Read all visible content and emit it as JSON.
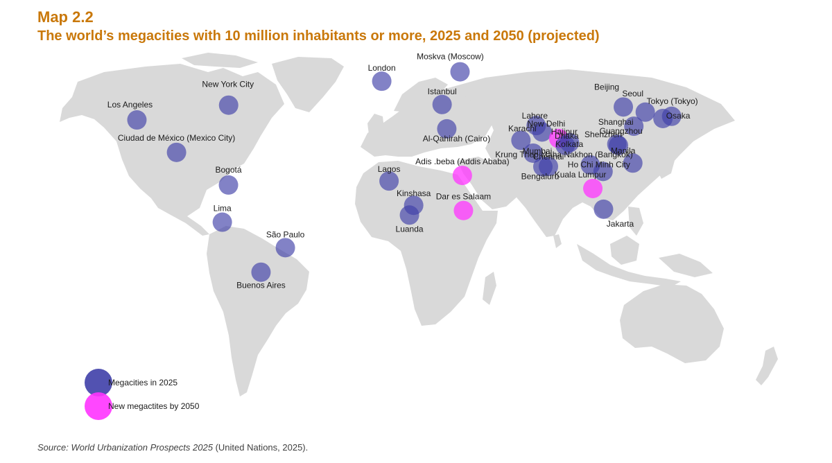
{
  "header": {
    "map_label": "Map 2.2",
    "title": "The world’s megacities with 10 million inhabitants or more, 2025 and 2050 (projected)"
  },
  "colors": {
    "accent": "#c9780a",
    "land": "#d9d9d9",
    "ocean": "#ffffff",
    "megacity_2025": "#3f3fa8",
    "new_megacity_2050": "#ff33ff"
  },
  "legend": {
    "megacities_2025": "Megacities in 2025",
    "new_megacities_2050": "New megactites by 2050"
  },
  "cities": [
    {
      "name": "Los Angeles",
      "lon": -118.24,
      "lat": 34.05,
      "group": "2025"
    },
    {
      "name": "New York City",
      "lon": -74.0,
      "lat": 40.71,
      "group": "2025"
    },
    {
      "name": "Ciudad de México (Mexico City)",
      "lon": -99.13,
      "lat": 19.43,
      "group": "2025"
    },
    {
      "name": "Bogotá",
      "lon": -74.07,
      "lat": 4.71,
      "group": "2025"
    },
    {
      "name": "Lima",
      "lon": -77.04,
      "lat": -12.05,
      "group": "2025"
    },
    {
      "name": "São Paulo",
      "lon": -46.63,
      "lat": -23.55,
      "group": "2025"
    },
    {
      "name": "Buenos Aires",
      "lon": -58.38,
      "lat": -34.6,
      "group": "2025"
    },
    {
      "name": "London",
      "lon": -0.13,
      "lat": 51.51,
      "group": "2025"
    },
    {
      "name": "Moskva (Moscow)",
      "lon": 37.62,
      "lat": 55.76,
      "group": "2025"
    },
    {
      "name": "Istanbul",
      "lon": 28.98,
      "lat": 41.01,
      "group": "2025"
    },
    {
      "name": "Al-Qahirah (Cairo)",
      "lon": 31.24,
      "lat": 30.04,
      "group": "2025"
    },
    {
      "name": "Lagos",
      "lon": 3.38,
      "lat": 6.52,
      "group": "2025"
    },
    {
      "name": "Kinshasa",
      "lon": 15.27,
      "lat": -4.44,
      "group": "2025"
    },
    {
      "name": "Luanda",
      "lon": 13.23,
      "lat": -8.84,
      "group": "2025"
    },
    {
      "name": "Adis .beba (Addis Ababa)",
      "lon": 38.75,
      "lat": 9.03,
      "group": "2050"
    },
    {
      "name": "Dar es Salaam",
      "lon": 39.28,
      "lat": -6.79,
      "group": "2050"
    },
    {
      "name": "Karachi",
      "lon": 67.0,
      "lat": 24.86,
      "group": "2025"
    },
    {
      "name": "Lahore",
      "lon": 74.36,
      "lat": 31.52,
      "group": "2025"
    },
    {
      "name": "New Delhi",
      "lon": 77.21,
      "lat": 28.61,
      "group": "2025"
    },
    {
      "name": "Hajipur",
      "lon": 85.22,
      "lat": 25.69,
      "group": "2050"
    },
    {
      "name": "Dhaka",
      "lon": 90.41,
      "lat": 23.81,
      "group": "2025"
    },
    {
      "name": "Kolkata",
      "lon": 88.36,
      "lat": 22.57,
      "group": "2025"
    },
    {
      "name": "Mumbai",
      "lon": 72.88,
      "lat": 19.08,
      "group": "2025"
    },
    {
      "name": "Chennai",
      "lon": 80.27,
      "lat": 13.08,
      "group": "2025"
    },
    {
      "name": "Bengaluru",
      "lon": 77.59,
      "lat": 12.97,
      "group": "2025"
    },
    {
      "name": "Krung Thep Maha Nakhon (Bangkok)",
      "lon": 100.5,
      "lat": 13.76,
      "group": "2025"
    },
    {
      "name": "Ho Chi Minh City",
      "lon": 106.63,
      "lat": 10.82,
      "group": "2025"
    },
    {
      "name": "Kuala Lumpur",
      "lon": 101.69,
      "lat": 3.14,
      "group": "2050"
    },
    {
      "name": "Jakarta",
      "lon": 106.85,
      "lat": -6.21,
      "group": "2025"
    },
    {
      "name": "Manila",
      "lon": 120.98,
      "lat": 14.6,
      "group": "2025"
    },
    {
      "name": "Shenzhen",
      "lon": 114.06,
      "lat": 22.54,
      "group": "2025"
    },
    {
      "name": "Guangzhou",
      "lon": 113.26,
      "lat": 23.13,
      "group": "2025"
    },
    {
      "name": "Shanghai",
      "lon": 121.47,
      "lat": 31.23,
      "group": "2025"
    },
    {
      "name": "Beijing",
      "lon": 116.4,
      "lat": 39.9,
      "group": "2025"
    },
    {
      "name": "Seoul",
      "lon": 126.98,
      "lat": 37.57,
      "group": "2025"
    },
    {
      "name": "Tokyo (Tokyo)",
      "lon": 139.69,
      "lat": 35.69,
      "group": "2025"
    },
    {
      "name": "Osaka",
      "lon": 135.5,
      "lat": 34.69,
      "group": "2025"
    }
  ],
  "source": {
    "prefix": "Source:",
    "publication": "World Urbanization Prospects 2025",
    "suffix": "(United Nations, 2025)."
  }
}
